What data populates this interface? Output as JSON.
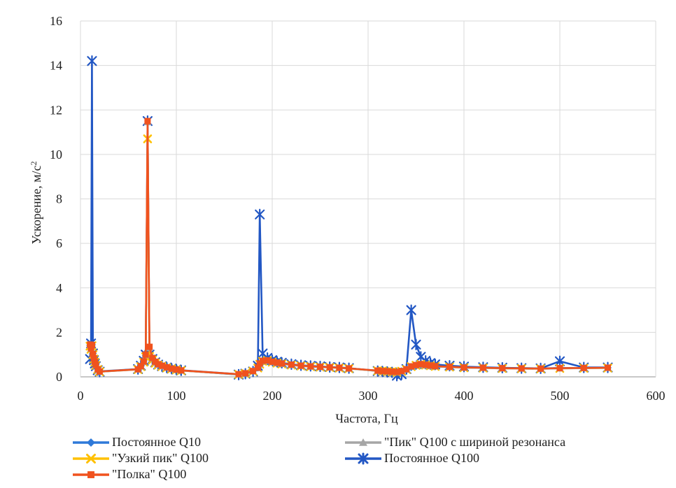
{
  "chart_data": {
    "type": "line",
    "title": "",
    "xlabel": "Частота, Гц",
    "ylabel": "Ускорение, м/с²",
    "ylabel_main": "Ускорение, м/с",
    "ylabel_sup": "2",
    "xlim": [
      0,
      600
    ],
    "ylim": [
      0,
      16
    ],
    "x_ticks": [
      0,
      100,
      200,
      300,
      400,
      500,
      600
    ],
    "y_ticks": [
      0,
      2,
      4,
      6,
      8,
      10,
      12,
      14,
      16
    ],
    "grid": true,
    "grid_color": "#d9d9d9",
    "axis_color": "#a6a6a6",
    "text_color": "#1f1f1f",
    "legend_position": "bottom",
    "legend_columns": [
      [
        0,
        1,
        2
      ],
      [
        3,
        4
      ]
    ],
    "x": [
      10,
      11,
      12,
      13,
      14,
      15,
      16,
      18,
      20,
      60,
      63,
      66,
      68,
      70,
      72,
      75,
      78,
      81,
      85,
      90,
      95,
      100,
      105,
      165,
      172,
      180,
      185,
      187,
      190,
      195,
      200,
      205,
      210,
      220,
      230,
      240,
      250,
      260,
      270,
      280,
      310,
      315,
      320,
      325,
      330,
      335,
      340,
      345,
      350,
      355,
      360,
      365,
      370,
      385,
      400,
      420,
      440,
      460,
      480,
      500,
      525,
      550
    ],
    "series": [
      {
        "name": "Постоянное Q10",
        "color": "#2e79d9",
        "marker": "diamond",
        "values": [
          1.42,
          1.3,
          1.45,
          1.05,
          0.85,
          0.7,
          0.55,
          0.35,
          0.25,
          0.35,
          0.5,
          0.72,
          0.95,
          1.15,
          0.98,
          0.82,
          0.66,
          0.56,
          0.5,
          0.43,
          0.38,
          0.34,
          0.3,
          0.12,
          0.16,
          0.26,
          0.42,
          0.6,
          0.66,
          0.7,
          0.68,
          0.64,
          0.6,
          0.55,
          0.5,
          0.47,
          0.45,
          0.43,
          0.41,
          0.38,
          0.28,
          0.27,
          0.25,
          0.24,
          0.22,
          0.26,
          0.31,
          0.43,
          0.48,
          0.52,
          0.5,
          0.48,
          0.46,
          0.44,
          0.42,
          0.41,
          0.4,
          0.39,
          0.38,
          0.4,
          0.4,
          0.41
        ]
      },
      {
        "name": "\"Узкий пик\" Q100",
        "color": "#ffc000",
        "marker": "x",
        "values": [
          1.38,
          1.24,
          1.4,
          1.0,
          0.8,
          0.66,
          0.52,
          0.33,
          0.23,
          0.33,
          0.46,
          0.66,
          0.9,
          10.7,
          0.92,
          0.76,
          0.62,
          0.53,
          0.47,
          0.41,
          0.36,
          0.32,
          0.28,
          0.11,
          0.15,
          0.25,
          0.4,
          0.57,
          0.7,
          0.73,
          0.66,
          0.62,
          0.58,
          0.53,
          0.49,
          0.46,
          0.44,
          0.42,
          0.4,
          0.37,
          0.27,
          0.26,
          0.24,
          0.23,
          0.21,
          0.25,
          0.33,
          0.46,
          0.52,
          0.56,
          0.53,
          0.5,
          0.47,
          0.44,
          0.41,
          0.4,
          0.38,
          0.37,
          0.36,
          0.38,
          0.39,
          0.4
        ]
      },
      {
        "name": "\"Полка\" Q100",
        "color": "#f0521e",
        "marker": "square",
        "values": [
          1.45,
          1.28,
          1.43,
          1.03,
          0.83,
          0.68,
          0.54,
          0.34,
          0.24,
          0.34,
          0.48,
          0.69,
          1.0,
          11.5,
          1.35,
          0.85,
          0.68,
          0.57,
          0.5,
          0.43,
          0.37,
          0.33,
          0.29,
          0.12,
          0.16,
          0.26,
          0.41,
          0.6,
          0.72,
          0.74,
          0.68,
          0.64,
          0.6,
          0.55,
          0.5,
          0.47,
          0.45,
          0.43,
          0.41,
          0.38,
          0.28,
          0.26,
          0.25,
          0.23,
          0.22,
          0.26,
          0.34,
          0.47,
          0.53,
          0.57,
          0.54,
          0.51,
          0.48,
          0.45,
          0.42,
          0.41,
          0.39,
          0.38,
          0.37,
          0.39,
          0.4,
          0.41
        ]
      },
      {
        "name": "\"Пик\" Q100 с шириной резонанса",
        "color": "#a6a6a6",
        "marker": "triangle",
        "values": [
          1.43,
          1.26,
          1.41,
          1.01,
          0.81,
          0.66,
          0.52,
          0.33,
          0.23,
          0.33,
          0.47,
          0.68,
          0.98,
          11.45,
          1.3,
          0.83,
          0.66,
          0.55,
          0.48,
          0.42,
          0.36,
          0.32,
          0.28,
          0.11,
          0.15,
          0.25,
          0.4,
          0.58,
          0.7,
          0.72,
          0.66,
          0.62,
          0.58,
          0.53,
          0.49,
          0.46,
          0.44,
          0.42,
          0.4,
          0.37,
          0.27,
          0.25,
          0.24,
          0.22,
          0.21,
          0.25,
          0.33,
          0.46,
          0.52,
          0.55,
          0.52,
          0.49,
          0.47,
          0.44,
          0.41,
          0.4,
          0.38,
          0.37,
          0.36,
          0.38,
          0.39,
          0.4
        ]
      },
      {
        "name": "Постоянное Q100",
        "color": "#2257c4",
        "marker": "star",
        "values": [
          0.8,
          1.5,
          14.2,
          1.05,
          0.75,
          0.6,
          0.48,
          0.3,
          0.23,
          0.35,
          0.5,
          0.72,
          1.0,
          11.5,
          1.0,
          0.8,
          0.65,
          0.55,
          0.48,
          0.42,
          0.37,
          0.33,
          0.29,
          0.1,
          0.14,
          0.24,
          0.5,
          7.3,
          1.05,
          0.85,
          0.75,
          0.68,
          0.63,
          0.57,
          0.52,
          0.49,
          0.47,
          0.44,
          0.42,
          0.39,
          0.26,
          0.24,
          0.22,
          0.2,
          0.05,
          0.12,
          0.35,
          3.0,
          1.45,
          0.9,
          0.72,
          0.62,
          0.56,
          0.5,
          0.46,
          0.43,
          0.41,
          0.39,
          0.38,
          0.7,
          0.42,
          0.42
        ]
      }
    ]
  }
}
